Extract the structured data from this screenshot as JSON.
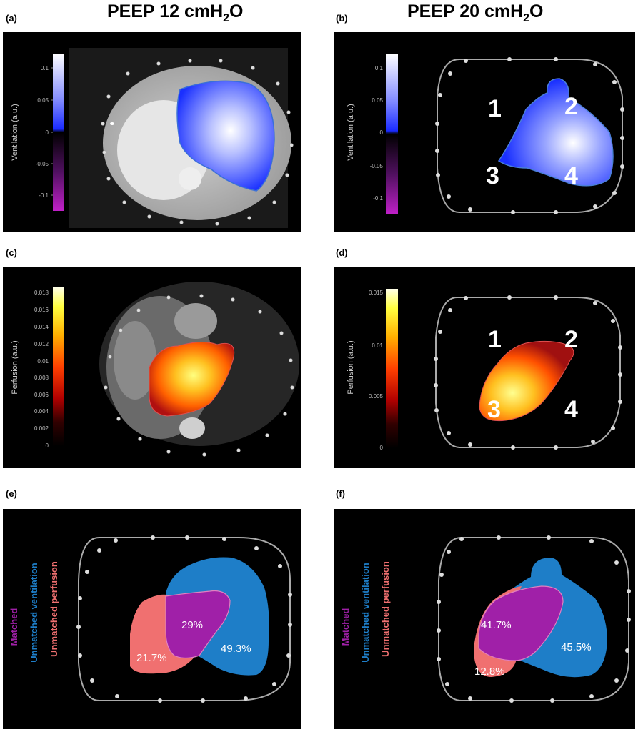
{
  "titles": {
    "left": {
      "main": "PEEP 12 cmH",
      "sub": "2",
      "tail": "O"
    },
    "right": {
      "main": "PEEP 20 cmH",
      "sub": "2",
      "tail": "O"
    }
  },
  "panel_labels": [
    "(a)",
    "(b)",
    "(c)",
    "(d)",
    "(e)",
    "(f)"
  ],
  "ventilation_colorbar": {
    "axis_label": "Ventilation (a.u.)",
    "ticks": [
      "0.1",
      "0.05",
      "0",
      "-0.05",
      "-0.1"
    ],
    "colors": {
      "top": "#ffffff",
      "mid": "#1a2bff",
      "zero": "#000000",
      "bottom": "#c020c8"
    }
  },
  "perfusion_colorbar_c": {
    "axis_label": "Perfusion (a.u.)",
    "ticks": [
      "0.018",
      "0.016",
      "0.014",
      "0.012",
      "0.01",
      "0.008",
      "0.006",
      "0.004",
      "0.002",
      "0"
    ]
  },
  "perfusion_colorbar_d": {
    "axis_label": "Perfusion (a.u.)",
    "ticks": [
      "0.015",
      "0.01",
      "0.005",
      "0"
    ]
  },
  "regions": [
    "1",
    "2",
    "3",
    "4"
  ],
  "legend": {
    "matched": "Matched",
    "unmatched_ventilation": "Unmatched ventilation",
    "unmatched_perfusion": "Unmatched perfusion",
    "colors": {
      "matched": "#a020a8",
      "ventilation": "#1e7ec8",
      "perfusion": "#f07070"
    }
  },
  "panel_e": {
    "matched": "29%",
    "ventilation": "49.3%",
    "perfusion": "21.7%"
  },
  "panel_f": {
    "matched": "41.7%",
    "ventilation": "45.5%",
    "perfusion": "12.8%"
  }
}
